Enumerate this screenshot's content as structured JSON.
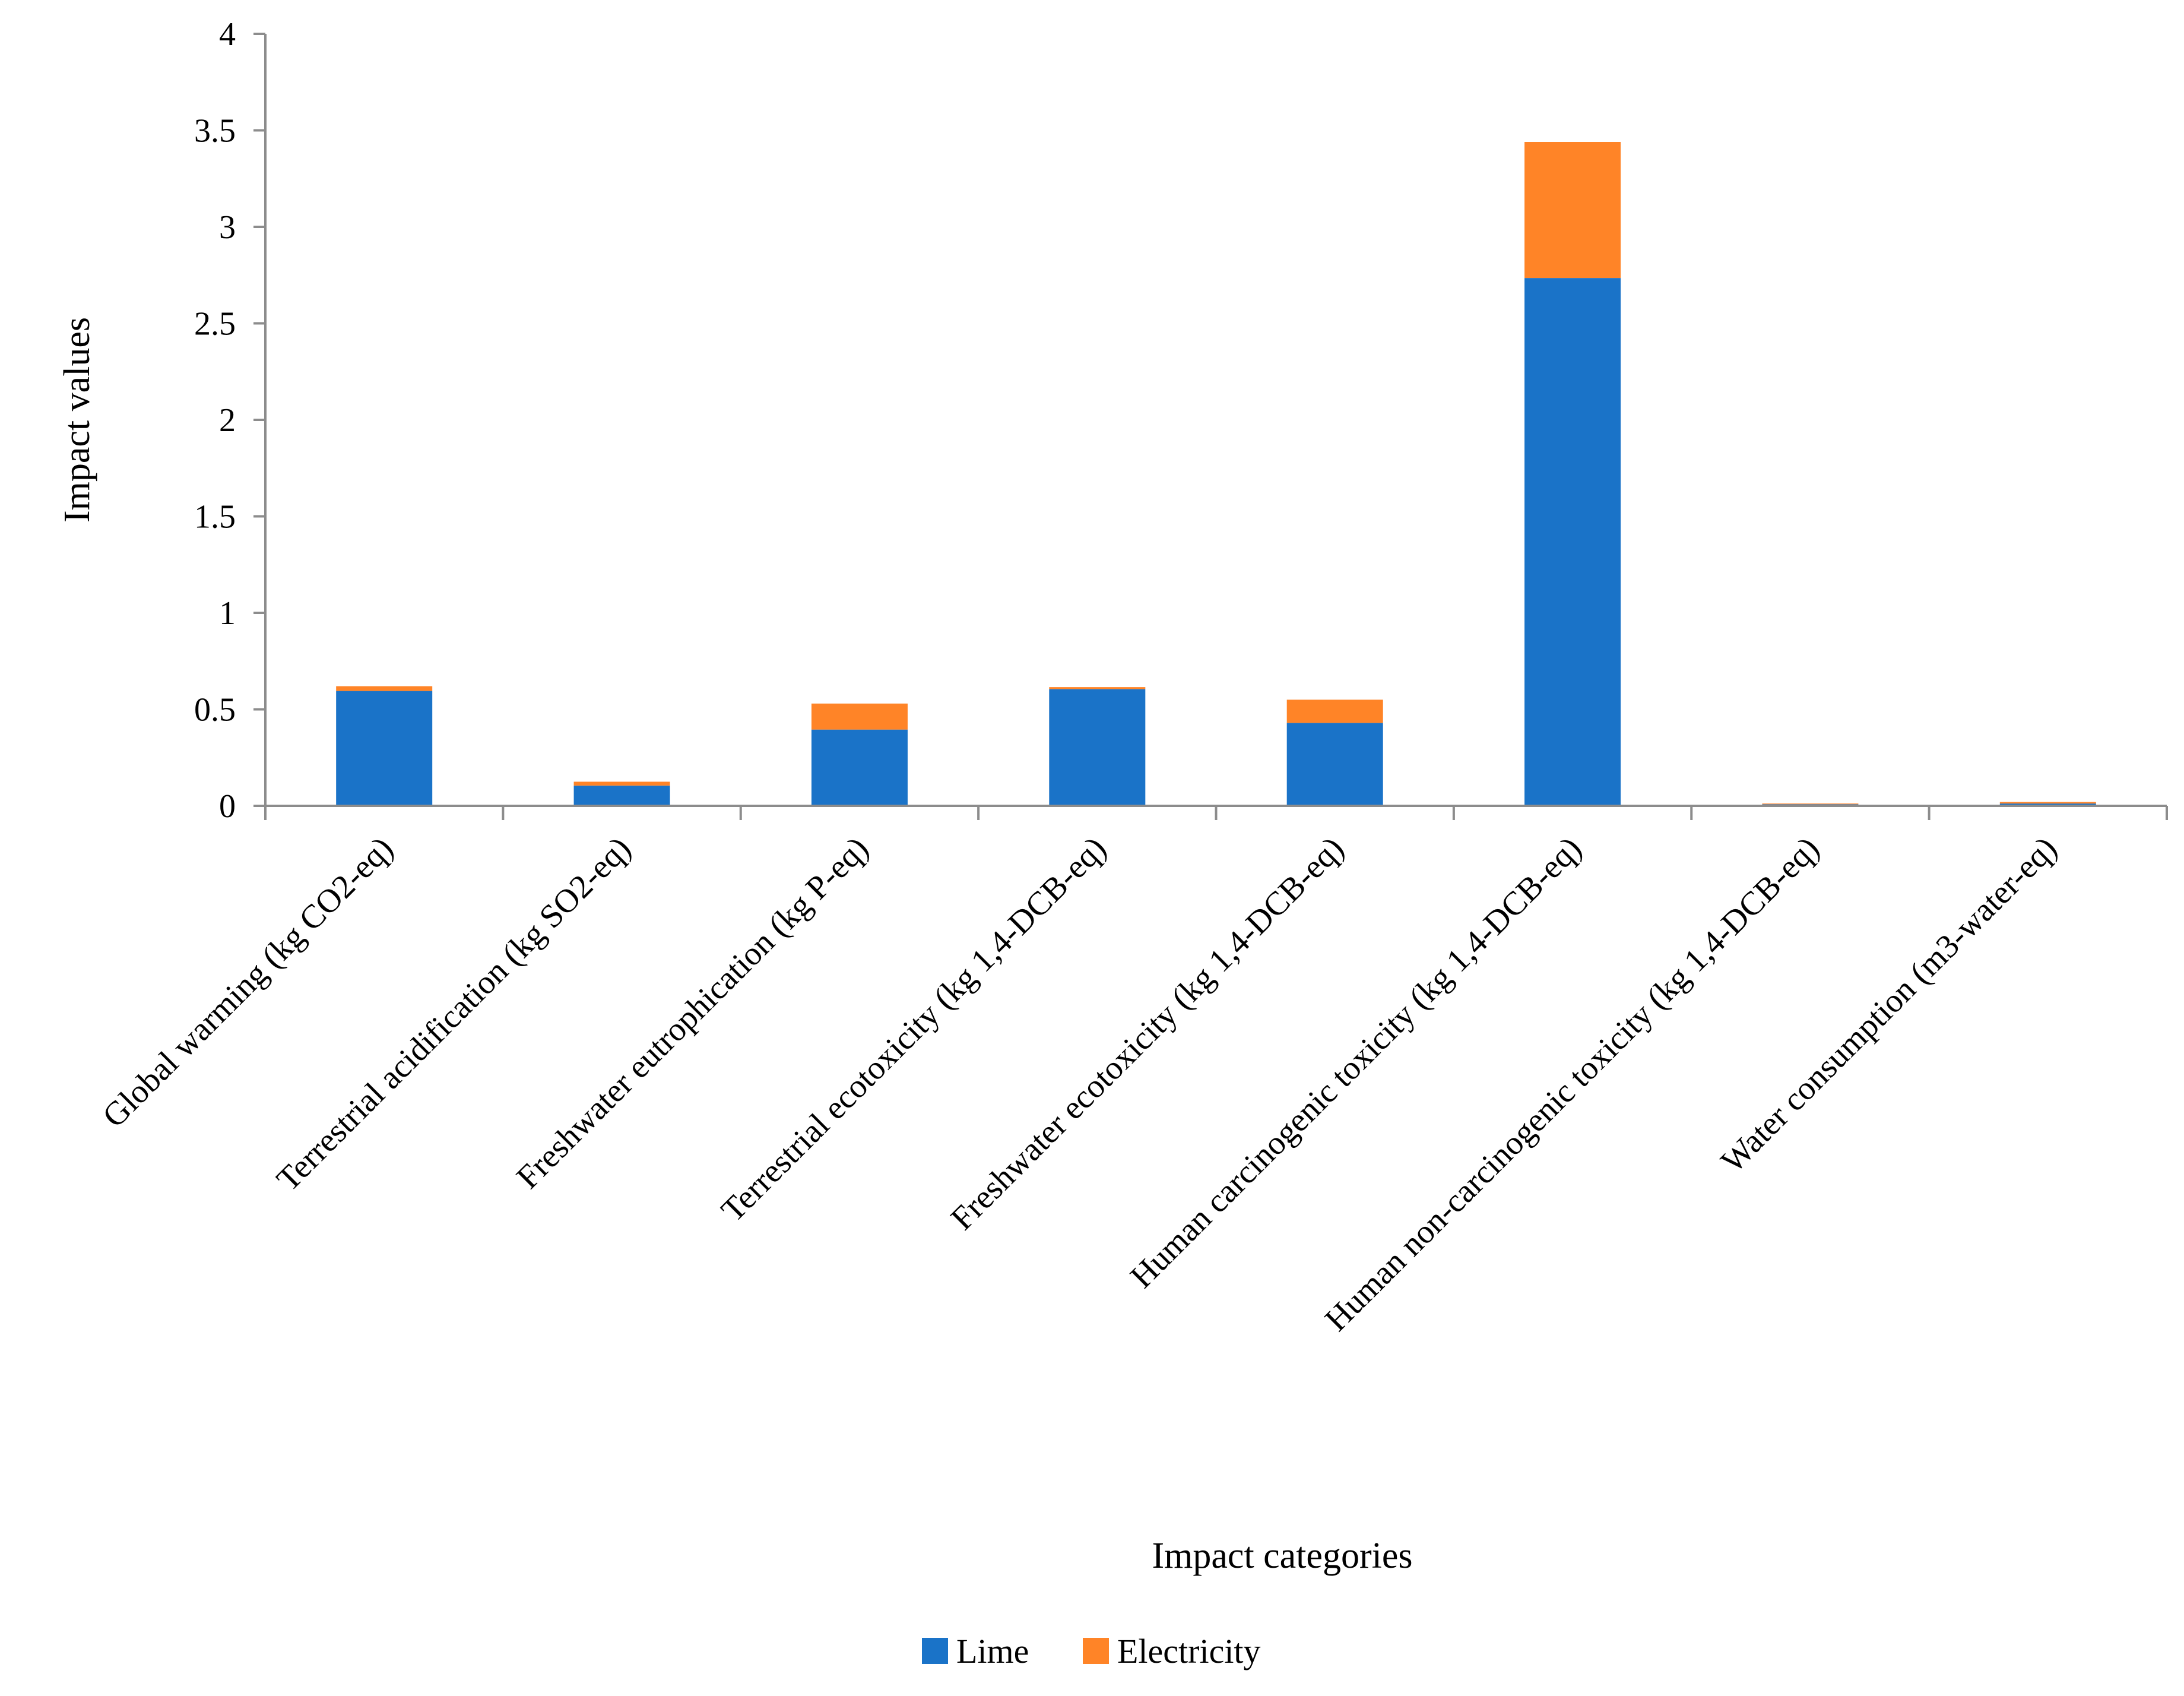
{
  "chart_data": {
    "type": "bar",
    "stacked": true,
    "title": "",
    "xlabel": "Impact categories",
    "ylabel": "Impact values",
    "ylim": [
      0,
      4
    ],
    "yticks": [
      0,
      0.5,
      1,
      1.5,
      2,
      2.5,
      3,
      3.5,
      4
    ],
    "ytick_labels": [
      "0",
      "0.5",
      "1",
      "1.5",
      "2",
      "2.5",
      "3",
      "3.5",
      "4"
    ],
    "grid": false,
    "legend_position": "bottom-center",
    "categories": [
      "Global warming (kg CO2-eq)",
      "Terrestrial acidification (kg SO2-eq)",
      "Freshwater eutrophication (kg P-eq)",
      "Terrestrial ecotoxicity (kg 1,4-DCB-eq)",
      "Freshwater ecotoxicity (kg 1,4-DCB-eq)",
      "Human carcinogenic toxicity (kg 1,4-DCB-eq)",
      "Human non-carcinogenic toxicity (kg 1,4-DCB-eq)",
      "Water consumption (m3-water-eq)"
    ],
    "series": [
      {
        "name": "Lime",
        "color": "#1a73c8",
        "values": [
          0.595,
          0.105,
          0.395,
          0.605,
          0.43,
          2.735,
          0.008,
          0.012
        ]
      },
      {
        "name": "Electricity",
        "color": "#ff8427",
        "values": [
          0.025,
          0.02,
          0.135,
          0.01,
          0.12,
          0.705,
          0.004,
          0.008
        ]
      }
    ]
  }
}
